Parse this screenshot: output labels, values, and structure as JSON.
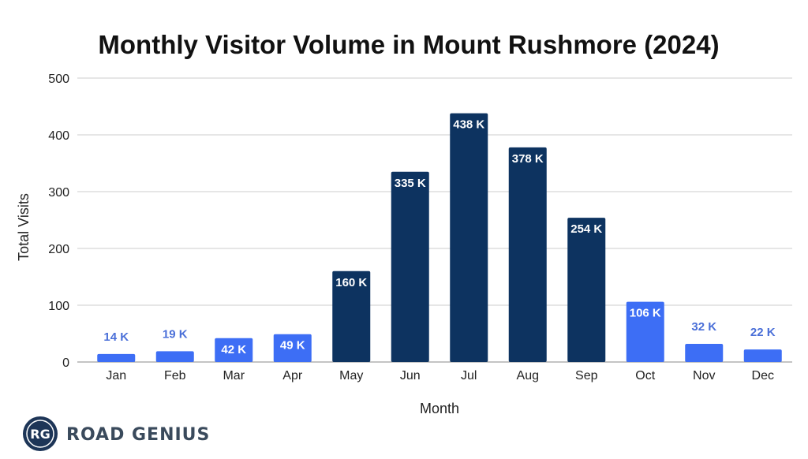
{
  "chart_data": {
    "type": "bar",
    "title": "Monthly Visitor Volume in Mount Rushmore (2024)",
    "xlabel": "Month",
    "ylabel": "Total Visits",
    "ylim": [
      0,
      500
    ],
    "yticks": [
      0,
      100,
      200,
      300,
      400,
      500
    ],
    "grid": true,
    "categories": [
      "Jan",
      "Feb",
      "Mar",
      "Apr",
      "May",
      "Jun",
      "Jul",
      "Aug",
      "Sep",
      "Oct",
      "Nov",
      "Dec"
    ],
    "values": [
      14,
      19,
      42,
      49,
      160,
      335,
      438,
      378,
      254,
      106,
      32,
      22
    ],
    "data_labels": [
      "14 K",
      "19 K",
      "42 K",
      "49 K",
      "160 K",
      "335 K",
      "438 K",
      "378 K",
      "254 K",
      "106 K",
      "32 K",
      "22 K"
    ],
    "colors": {
      "low_season": "#3d6ef5",
      "peak_season": "#0d3360",
      "gridline": "#cccccc",
      "outside_label": "#4a6fd8",
      "inside_label": "#ffffff"
    },
    "peak_threshold": 150
  },
  "brand": {
    "initials": "RG",
    "name": "ROAD GENIUS",
    "colors": {
      "circle": "#1d3557",
      "text": "#3a4a5c"
    }
  }
}
